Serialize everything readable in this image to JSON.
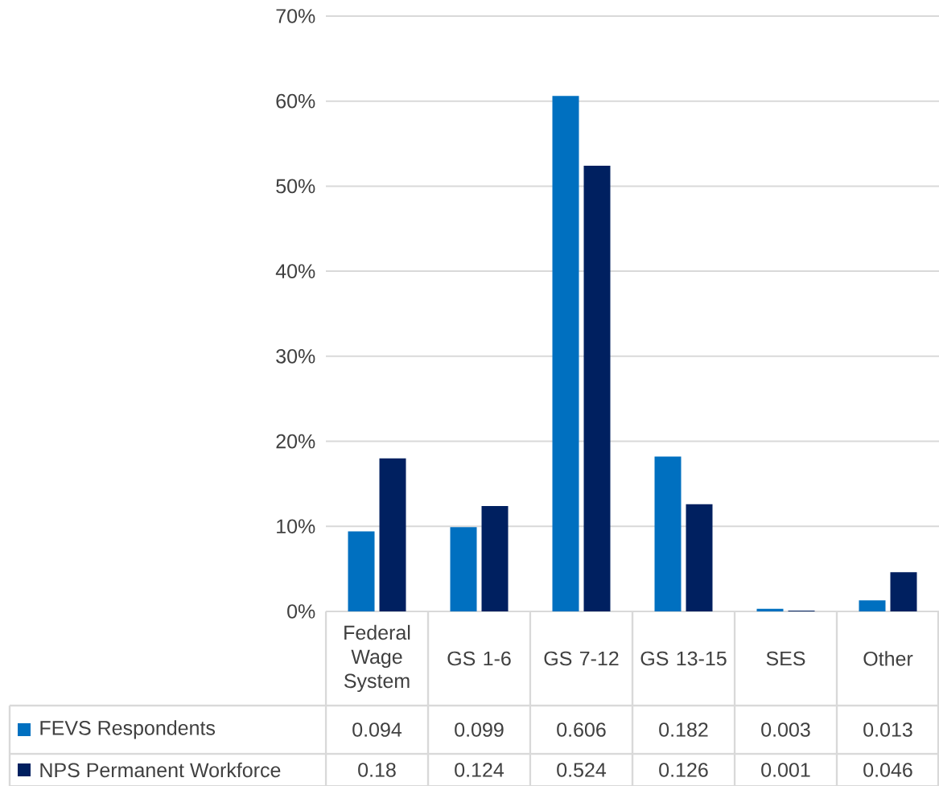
{
  "chart_data": {
    "type": "bar",
    "categories": [
      "Federal Wage System",
      "GS 1-6",
      "GS 7-12",
      "GS 13-15",
      "SES",
      "Other"
    ],
    "series": [
      {
        "name": "FEVS Respondents",
        "color": "#0070c0",
        "values": [
          0.094,
          0.099,
          0.606,
          0.182,
          0.003,
          0.013
        ]
      },
      {
        "name": "NPS Permanent Workforce",
        "color": "#002060",
        "values": [
          0.18,
          0.124,
          0.524,
          0.126,
          0.001,
          0.046
        ]
      }
    ],
    "ylim": [
      0,
      0.7
    ],
    "yticks": [
      {
        "value": 0,
        "label": "0%"
      },
      {
        "value": 0.1,
        "label": "10%"
      },
      {
        "value": 0.2,
        "label": "20%"
      },
      {
        "value": 0.3,
        "label": "30%"
      },
      {
        "value": 0.4,
        "label": "40%"
      },
      {
        "value": 0.5,
        "label": "50%"
      },
      {
        "value": 0.6,
        "label": "60%"
      },
      {
        "value": 0.7,
        "label": "70%"
      }
    ],
    "grid": "y",
    "legend": "bottom",
    "data_labels": true
  }
}
